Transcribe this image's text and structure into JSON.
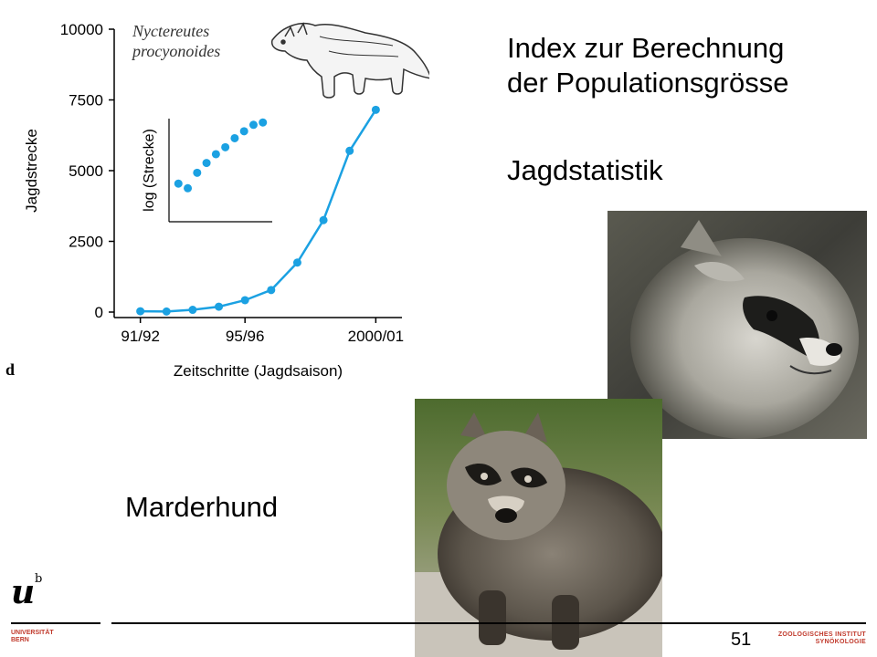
{
  "slide": {
    "title_line1": "Index zur Berechnung",
    "title_line2": "der  Populationsgrösse",
    "subtitle": "Jagdstatistik",
    "caption": "Marderhund",
    "page_number": "51",
    "panel_label": "d",
    "species_line1": "Nyctereutes",
    "species_line2": "procyonoides"
  },
  "logos": {
    "uni_mark": "u",
    "uni_sup": "b",
    "uni_line1": "UNIVERSITÄT",
    "uni_line2": "BERN",
    "inst_line1": "ZOOLOGISCHES INSTITUT",
    "inst_line2": "SYNÖKOLOGIE",
    "accent": "#c0392b"
  },
  "colors": {
    "series": "#1ba1e2",
    "axis": "#000000"
  },
  "chart_data": [
    {
      "type": "line",
      "xlabel": "Zeitschritte (Jagdsaison)",
      "ylabel": "Jagdstrecke",
      "x": [
        1,
        2,
        3,
        4,
        5,
        6,
        7,
        8,
        9,
        10
      ],
      "values": [
        30,
        20,
        80,
        190,
        420,
        780,
        1750,
        3250,
        5700,
        7150
      ],
      "xlim": [
        0,
        11
      ],
      "ylim": [
        0,
        10000
      ],
      "yticks": [
        0,
        2500,
        5000,
        7500,
        10000
      ],
      "yticklabels": [
        "0",
        "2500",
        "5000",
        "7500",
        "10000"
      ],
      "xticks": [
        1,
        5,
        10
      ],
      "xticklabels": [
        "91/92",
        "95/96",
        "2000/01"
      ],
      "grid": false
    },
    {
      "type": "scatter",
      "ylabel": "log (Strecke)",
      "x": [
        1,
        2,
        3,
        4,
        5,
        6,
        7,
        8,
        9,
        10
      ],
      "values": [
        1.48,
        1.3,
        1.9,
        2.28,
        2.62,
        2.89,
        3.24,
        3.51,
        3.76,
        3.85
      ],
      "xlim": [
        0,
        11
      ],
      "ylim": [
        0,
        4
      ],
      "grid": false
    }
  ]
}
